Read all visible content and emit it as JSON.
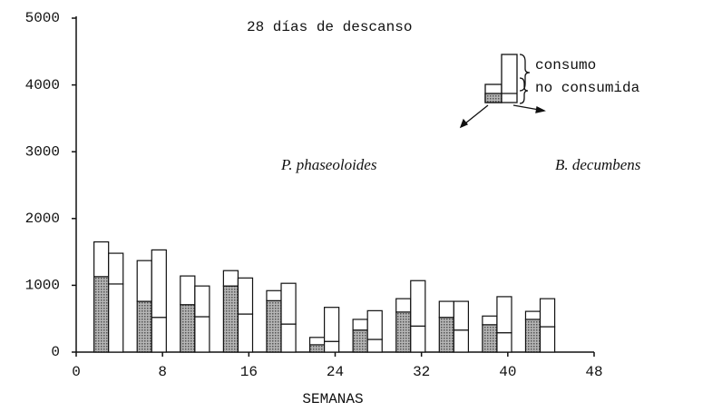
{
  "chart_data": {
    "type": "grouped_stacked_bar",
    "title": "28 días de descanso",
    "x_label": "SEMANAS",
    "x": [
      3,
      7,
      11,
      15,
      19,
      23,
      27,
      31,
      35,
      39,
      43
    ],
    "stack_names": [
      "no consumida",
      "consumo"
    ],
    "series": [
      {
        "name": "P. phaseoloides",
        "colors": [
          "#9a9a9a",
          "#ffffff"
        ],
        "stacks": [
          [
            1130,
            760,
            710,
            990,
            770,
            110,
            330,
            600,
            520,
            410,
            490
          ],
          [
            520,
            610,
            430,
            230,
            150,
            110,
            160,
            200,
            240,
            130,
            120
          ]
        ]
      },
      {
        "name": "B. decumbens",
        "colors": [
          "#ffffff",
          "#ffffff"
        ],
        "stacks": [
          [
            1020,
            520,
            530,
            570,
            420,
            160,
            190,
            390,
            330,
            290,
            380
          ],
          [
            460,
            1010,
            460,
            540,
            610,
            510,
            430,
            680,
            430,
            540,
            420
          ]
        ]
      }
    ],
    "xlim": [
      0,
      48
    ],
    "xticks": [
      0,
      8,
      16,
      24,
      32,
      40,
      48
    ],
    "ylim": [
      0,
      5000
    ],
    "yticks": [
      0,
      1000,
      2000,
      3000,
      4000,
      5000
    ]
  }
}
